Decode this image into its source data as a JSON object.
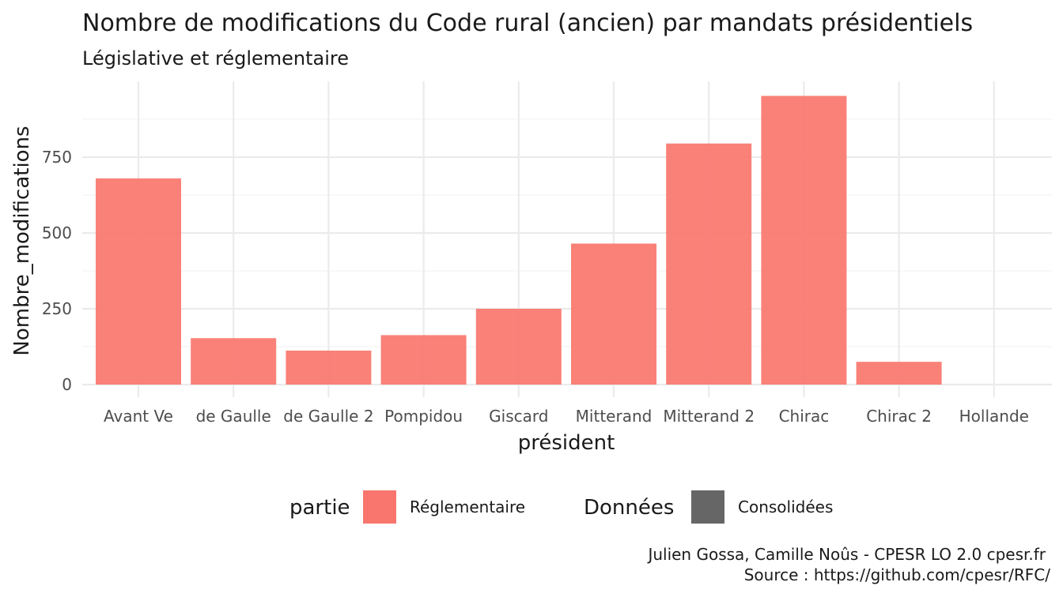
{
  "chart_data": {
    "type": "bar",
    "title": "Nombre de modifications du Code rural (ancien) par mandats présidentiels",
    "subtitle": "Législative et réglementaire",
    "xlabel": "président",
    "ylabel": "Nombre_modifications",
    "categories": [
      "Avant Ve",
      "de Gaulle",
      "de Gaulle 2",
      "Pompidou",
      "Giscard",
      "Mitterand",
      "Mitterand 2",
      "Chirac",
      "Chirac 2",
      "Hollande"
    ],
    "series": [
      {
        "name": "Réglementaire",
        "values": [
          680,
          153,
          112,
          163,
          250,
          465,
          795,
          952,
          75,
          0
        ]
      }
    ],
    "yticks": [
      0,
      250,
      500,
      750
    ],
    "ylim": [
      0,
      990
    ],
    "grid": true,
    "legend": {
      "position": "bottom",
      "groups": [
        {
          "title": "partie",
          "items": [
            {
              "label": "Réglementaire",
              "color": "#f8766d"
            }
          ]
        },
        {
          "title": "Données",
          "items": [
            {
              "label": "Consolidées",
              "color": "#666666"
            }
          ]
        }
      ]
    },
    "caption": [
      "Julien Gossa, Camille Noûs - CPESR LO 2.0 cpesr.fr",
      "Source : https://github.com/cpesr/RFC/"
    ],
    "colors": {
      "bar": "#f8766d",
      "legend_dark": "#666666"
    }
  }
}
